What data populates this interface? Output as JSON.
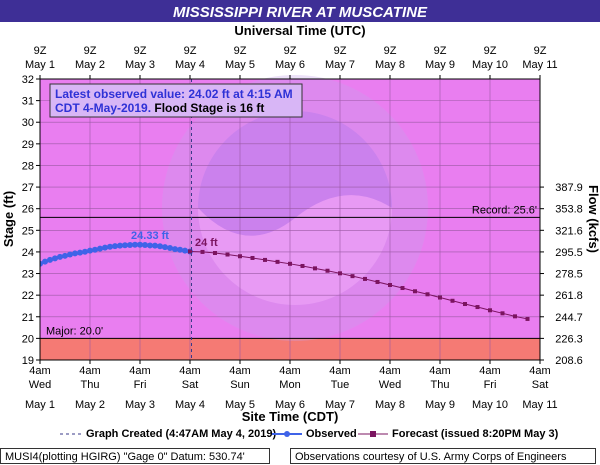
{
  "header": {
    "title": "MISSISSIPPI RIVER AT MUSCATINE",
    "subtitle": "Universal Time (UTC)"
  },
  "chart_data": {
    "type": "line",
    "title": "MISSISSIPPI RIVER AT MUSCATINE",
    "top_axis_label": "Universal Time (UTC)",
    "xlabel": "Site Time (CDT)",
    "ylabel": "Stage (ft)",
    "y2label": "Flow (kcfs)",
    "ylim": [
      19,
      32
    ],
    "xlim_days_label": [
      "May 1",
      "May 11"
    ],
    "y_ticks": [
      "19",
      "20",
      "21",
      "22",
      "23",
      "24",
      "25",
      "26",
      "27",
      "28",
      "29",
      "30",
      "31",
      "32"
    ],
    "y2_ticks": [
      "208.6",
      "226.3",
      "244.7",
      "261.8",
      "278.5",
      "295.5",
      "321.6",
      "353.8",
      "387.9"
    ],
    "y2_tick_stage": [
      19,
      20,
      21,
      22,
      23,
      24,
      25,
      26,
      27
    ],
    "top_ticks": [
      {
        "t": "9Z",
        "d": "May 1"
      },
      {
        "t": "9Z",
        "d": "May 2"
      },
      {
        "t": "9Z",
        "d": "May 3"
      },
      {
        "t": "9Z",
        "d": "May 4"
      },
      {
        "t": "9Z",
        "d": "May 5"
      },
      {
        "t": "9Z",
        "d": "May 6"
      },
      {
        "t": "9Z",
        "d": "May 7"
      },
      {
        "t": "9Z",
        "d": "May 8"
      },
      {
        "t": "9Z",
        "d": "May 9"
      },
      {
        "t": "9Z",
        "d": "May 10"
      },
      {
        "t": "9Z",
        "d": "May 11"
      }
    ],
    "bottom_ticks": [
      {
        "t": "4am",
        "w": "Wed",
        "d": "May 1"
      },
      {
        "t": "4am",
        "w": "Thu",
        "d": "May 2"
      },
      {
        "t": "4am",
        "w": "Fri",
        "d": "May 3"
      },
      {
        "t": "4am",
        "w": "Sat",
        "d": "May 4"
      },
      {
        "t": "4am",
        "w": "Sun",
        "d": "May 5"
      },
      {
        "t": "4am",
        "w": "Mon",
        "d": "May 6"
      },
      {
        "t": "4am",
        "w": "Tue",
        "d": "May 7"
      },
      {
        "t": "4am",
        "w": "Wed",
        "d": "May 8"
      },
      {
        "t": "4am",
        "w": "Thu",
        "d": "May 9"
      },
      {
        "t": "4am",
        "w": "Fri",
        "d": "May 10"
      },
      {
        "t": "4am",
        "w": "Sat",
        "d": "May 11"
      }
    ],
    "thresholds": [
      {
        "label": "Record: 25.6'",
        "value": 25.6
      },
      {
        "label": "Major: 20.0'",
        "value": 20.0
      }
    ],
    "info_box": {
      "line1": "Latest observed value: 24.02 ft at 4:15 AM",
      "line2_blue": "CDT 4-May-2019.",
      "line2_black": " Flood Stage is 16 ft"
    },
    "annotations": [
      {
        "text": "24.33 ft",
        "day": 2.2,
        "value": 24.33
      },
      {
        "text": "24 ft",
        "day": 3.1,
        "value": 24.0
      }
    ],
    "graph_created_day": 3.03,
    "series": [
      {
        "name": "Observed",
        "color": "#3f63e8",
        "days": [
          0.0,
          0.1,
          0.2,
          0.3,
          0.4,
          0.5,
          0.6,
          0.7,
          0.8,
          0.9,
          1.0,
          1.1,
          1.2,
          1.3,
          1.4,
          1.5,
          1.6,
          1.7,
          1.8,
          1.9,
          2.0,
          2.1,
          2.2,
          2.3,
          2.4,
          2.5,
          2.6,
          2.7,
          2.8,
          2.9,
          3.0
        ],
        "values": [
          23.45,
          23.55,
          23.63,
          23.7,
          23.77,
          23.82,
          23.88,
          23.93,
          23.97,
          24.01,
          24.06,
          24.1,
          24.15,
          24.2,
          24.24,
          24.27,
          24.29,
          24.31,
          24.32,
          24.33,
          24.33,
          24.32,
          24.3,
          24.29,
          24.26,
          24.22,
          24.18,
          24.13,
          24.1,
          24.06,
          24.02
        ]
      },
      {
        "name": "Forecast",
        "color": "#7b1460",
        "days": [
          3.0,
          3.25,
          3.5,
          3.75,
          4.0,
          4.25,
          4.5,
          4.75,
          5.0,
          5.25,
          5.5,
          5.75,
          6.0,
          6.25,
          6.5,
          6.75,
          7.0,
          7.25,
          7.5,
          7.75,
          8.0,
          8.25,
          8.5,
          8.75,
          9.0,
          9.25,
          9.5,
          9.75
        ],
        "values": [
          24.02,
          24.0,
          23.95,
          23.88,
          23.8,
          23.72,
          23.63,
          23.54,
          23.45,
          23.35,
          23.24,
          23.13,
          23.01,
          22.88,
          22.75,
          22.61,
          22.47,
          22.33,
          22.18,
          22.04,
          21.89,
          21.74,
          21.59,
          21.45,
          21.3,
          21.16,
          21.02,
          20.9
        ]
      }
    ],
    "colors": {
      "background": "#e97ef0",
      "major_band": "#f57a74",
      "title_band": "#3e2f96",
      "observed": "#3f63e8",
      "forecast": "#7b1460",
      "threshold": "#000000"
    }
  },
  "legend": {
    "graph_created": "Graph Created (4:47AM May 4, 2019)",
    "observed": "Observed",
    "forecast": "Forecast (issued 8:20PM May 3)"
  },
  "footer": {
    "left": "MUSI4(plotting HGIRG) \"Gage 0\" Datum:  530.74'",
    "right": "Observations courtesy of U.S. Army Corps of Engineers"
  }
}
